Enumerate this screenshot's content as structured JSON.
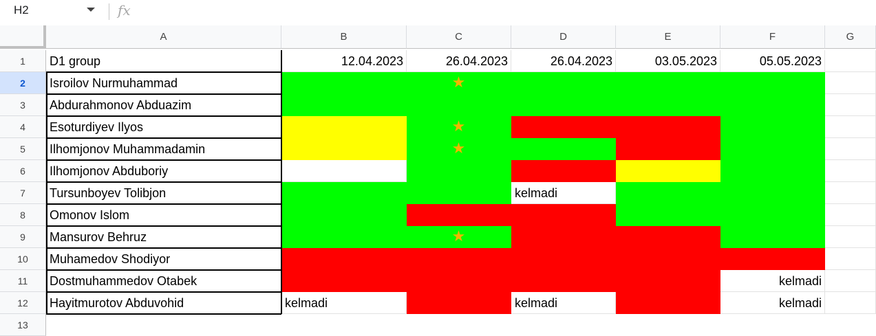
{
  "formula_bar": {
    "name_box": "H2",
    "fx_label": "fx"
  },
  "columns": [
    "A",
    "B",
    "C",
    "D",
    "E",
    "F",
    "G"
  ],
  "rows": [
    {
      "num": "1",
      "name": "D1 group",
      "cells": [
        {
          "bg": "#ffffff",
          "text": "12.04.2023"
        },
        {
          "bg": "#ffffff",
          "text": "26.04.2023"
        },
        {
          "bg": "#ffffff",
          "text": "26.04.2023"
        },
        {
          "bg": "#ffffff",
          "text": "03.05.2023"
        },
        {
          "bg": "#ffffff",
          "text": "05.05.2023"
        }
      ]
    },
    {
      "num": "2",
      "name": "Isroilov Nurmuhammad",
      "cells": [
        {
          "bg": "#00ff00"
        },
        {
          "bg": "#00ff00",
          "star": true
        },
        {
          "bg": "#00ff00"
        },
        {
          "bg": "#00ff00"
        },
        {
          "bg": "#00ff00"
        }
      ]
    },
    {
      "num": "3",
      "name": "Abdurahmonov Abduazim",
      "cells": [
        {
          "bg": "#00ff00"
        },
        {
          "bg": "#00ff00"
        },
        {
          "bg": "#00ff00"
        },
        {
          "bg": "#00ff00"
        },
        {
          "bg": "#00ff00"
        }
      ]
    },
    {
      "num": "4",
      "name": "Esoturdiyev Ilyos",
      "cells": [
        {
          "bg": "#ffff00"
        },
        {
          "bg": "#00ff00",
          "star": true
        },
        {
          "bg": "#ff0000"
        },
        {
          "bg": "#ff0000"
        },
        {
          "bg": "#00ff00"
        }
      ]
    },
    {
      "num": "5",
      "name": "Ilhomjonov Muhammadamin",
      "cells": [
        {
          "bg": "#ffff00"
        },
        {
          "bg": "#00ff00",
          "star": true
        },
        {
          "bg": "#00ff00"
        },
        {
          "bg": "#ff0000"
        },
        {
          "bg": "#00ff00"
        }
      ]
    },
    {
      "num": "6",
      "name": "Ilhomjonov Abduboriy",
      "cells": [
        {
          "bg": "#ffffff"
        },
        {
          "bg": "#00ff00"
        },
        {
          "bg": "#ff0000"
        },
        {
          "bg": "#ffff00"
        },
        {
          "bg": "#00ff00"
        }
      ]
    },
    {
      "num": "7",
      "name": "Tursunboyev Tolibjon",
      "cells": [
        {
          "bg": "#00ff00"
        },
        {
          "bg": "#00ff00"
        },
        {
          "bg": "#ffffff",
          "text": "kelmadi",
          "align": "left"
        },
        {
          "bg": "#00ff00"
        },
        {
          "bg": "#00ff00"
        }
      ]
    },
    {
      "num": "8",
      "name": "Omonov Islom",
      "cells": [
        {
          "bg": "#00ff00"
        },
        {
          "bg": "#ff0000"
        },
        {
          "bg": "#ff0000"
        },
        {
          "bg": "#00ff00"
        },
        {
          "bg": "#00ff00"
        }
      ]
    },
    {
      "num": "9",
      "name": "Mansurov Behruz",
      "cells": [
        {
          "bg": "#00ff00"
        },
        {
          "bg": "#00ff00",
          "star": true
        },
        {
          "bg": "#ff0000"
        },
        {
          "bg": "#ff0000"
        },
        {
          "bg": "#00ff00"
        }
      ]
    },
    {
      "num": "10",
      "name": "Muhamedov Shodiyor",
      "cells": [
        {
          "bg": "#ff0000"
        },
        {
          "bg": "#ff0000"
        },
        {
          "bg": "#ff0000"
        },
        {
          "bg": "#ff0000"
        },
        {
          "bg": "#ff0000"
        }
      ]
    },
    {
      "num": "11",
      "name": "Dostmuhammedov Otabek",
      "cells": [
        {
          "bg": "#ff0000"
        },
        {
          "bg": "#ff0000"
        },
        {
          "bg": "#ff0000"
        },
        {
          "bg": "#ff0000"
        },
        {
          "bg": "#ffffff",
          "text": "kelmadi",
          "align": "right"
        }
      ]
    },
    {
      "num": "12",
      "name": "Hayitmurotov Abduvohid",
      "cells": [
        {
          "bg": "#ffffff",
          "text": "kelmadi",
          "align": "left"
        },
        {
          "bg": "#ff0000"
        },
        {
          "bg": "#ffffff",
          "text": "kelmadi",
          "align": "left"
        },
        {
          "bg": "#ff0000"
        },
        {
          "bg": "#ffffff",
          "text": "kelmadi",
          "align": "right"
        }
      ]
    },
    {
      "num": "13"
    }
  ],
  "star_glyph": "★",
  "star_color": "#f4b400",
  "selected_row": "2"
}
